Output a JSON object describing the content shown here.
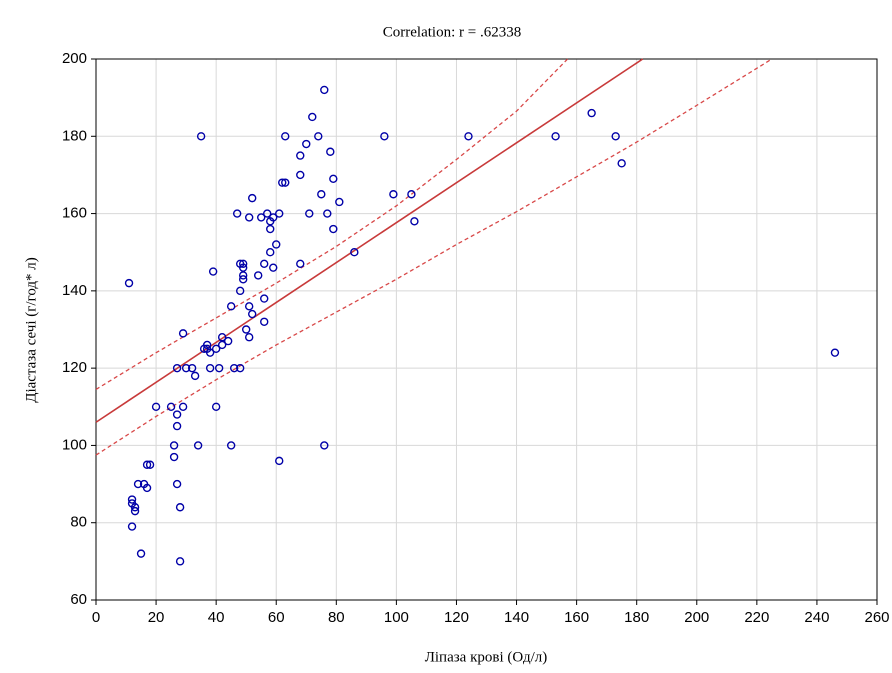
{
  "chart_data": {
    "type": "scatter",
    "title": "Correlation: r = .62338",
    "x_label": "Ліпаза крові (Од/л)",
    "y_label": "Діастаза сечі (г/год* л)",
    "xlim": [
      0,
      260
    ],
    "ylim": [
      60,
      200
    ],
    "xticks": [
      0,
      20,
      40,
      60,
      80,
      100,
      120,
      140,
      160,
      180,
      200,
      220,
      240,
      260
    ],
    "yticks": [
      60,
      80,
      100,
      120,
      140,
      160,
      180,
      200
    ],
    "grid": true,
    "series": [
      {
        "color": "#0000a8",
        "x": [
          11,
          12,
          12,
          13,
          12,
          13,
          14,
          15,
          16,
          17,
          17,
          18,
          20,
          25,
          26,
          26,
          27,
          27,
          27,
          27,
          28,
          28,
          29,
          29,
          30,
          32,
          33,
          34,
          35,
          36,
          37,
          37,
          38,
          38,
          39,
          40,
          40,
          41,
          42,
          42,
          44,
          45,
          45,
          46,
          47,
          48,
          48,
          48,
          49,
          49,
          49,
          49,
          50,
          51,
          51,
          51,
          52,
          52,
          54,
          55,
          56,
          56,
          56,
          57,
          58,
          58,
          58,
          59,
          59,
          60,
          61,
          61,
          62,
          63,
          63,
          68,
          68,
          68,
          70,
          71,
          72,
          74,
          75,
          76,
          76,
          77,
          78,
          79,
          79,
          81,
          86,
          96,
          99,
          105,
          106,
          124,
          153,
          165,
          173,
          175,
          246
        ],
        "y": [
          142,
          86,
          85,
          84,
          79,
          83,
          90,
          72,
          90,
          89,
          95,
          95,
          110,
          110,
          100,
          97,
          90,
          105,
          108,
          120,
          70,
          84,
          110,
          129,
          120,
          120,
          118,
          100,
          180,
          125,
          126,
          125,
          124,
          120,
          145,
          110,
          125,
          120,
          128,
          126,
          127,
          100,
          136,
          120,
          160,
          147,
          120,
          140,
          144,
          146,
          147,
          143,
          130,
          128,
          136,
          159,
          134,
          164,
          144,
          159,
          138,
          132,
          147,
          160,
          150,
          156,
          158,
          159,
          146,
          152,
          96,
          160,
          168,
          180,
          168,
          170,
          175,
          147,
          178,
          160,
          185,
          180,
          165,
          192,
          100,
          160,
          176,
          169,
          156,
          163,
          150,
          180,
          165,
          165,
          158,
          180,
          180,
          186,
          180,
          173,
          124
        ]
      }
    ],
    "regression_line": {
      "color": "#c83a3a",
      "x": [
        0,
        182
      ],
      "y": [
        106,
        200
      ]
    },
    "confidence_bands": [
      {
        "color": "#d84848",
        "dash": true,
        "x": [
          0,
          20,
          40,
          60,
          80,
          100,
          120,
          140,
          157
        ],
        "y": [
          114.5,
          124,
          133,
          142,
          151.5,
          162,
          174,
          186.5,
          200
        ]
      },
      {
        "color": "#d84848",
        "dash": true,
        "x": [
          0,
          20,
          40,
          60,
          80,
          100,
          120,
          140,
          160,
          180,
          200,
          225
        ],
        "y": [
          97.5,
          107.5,
          117,
          126,
          134.5,
          143,
          152,
          160.5,
          169.5,
          178.5,
          188,
          200
        ]
      }
    ]
  }
}
